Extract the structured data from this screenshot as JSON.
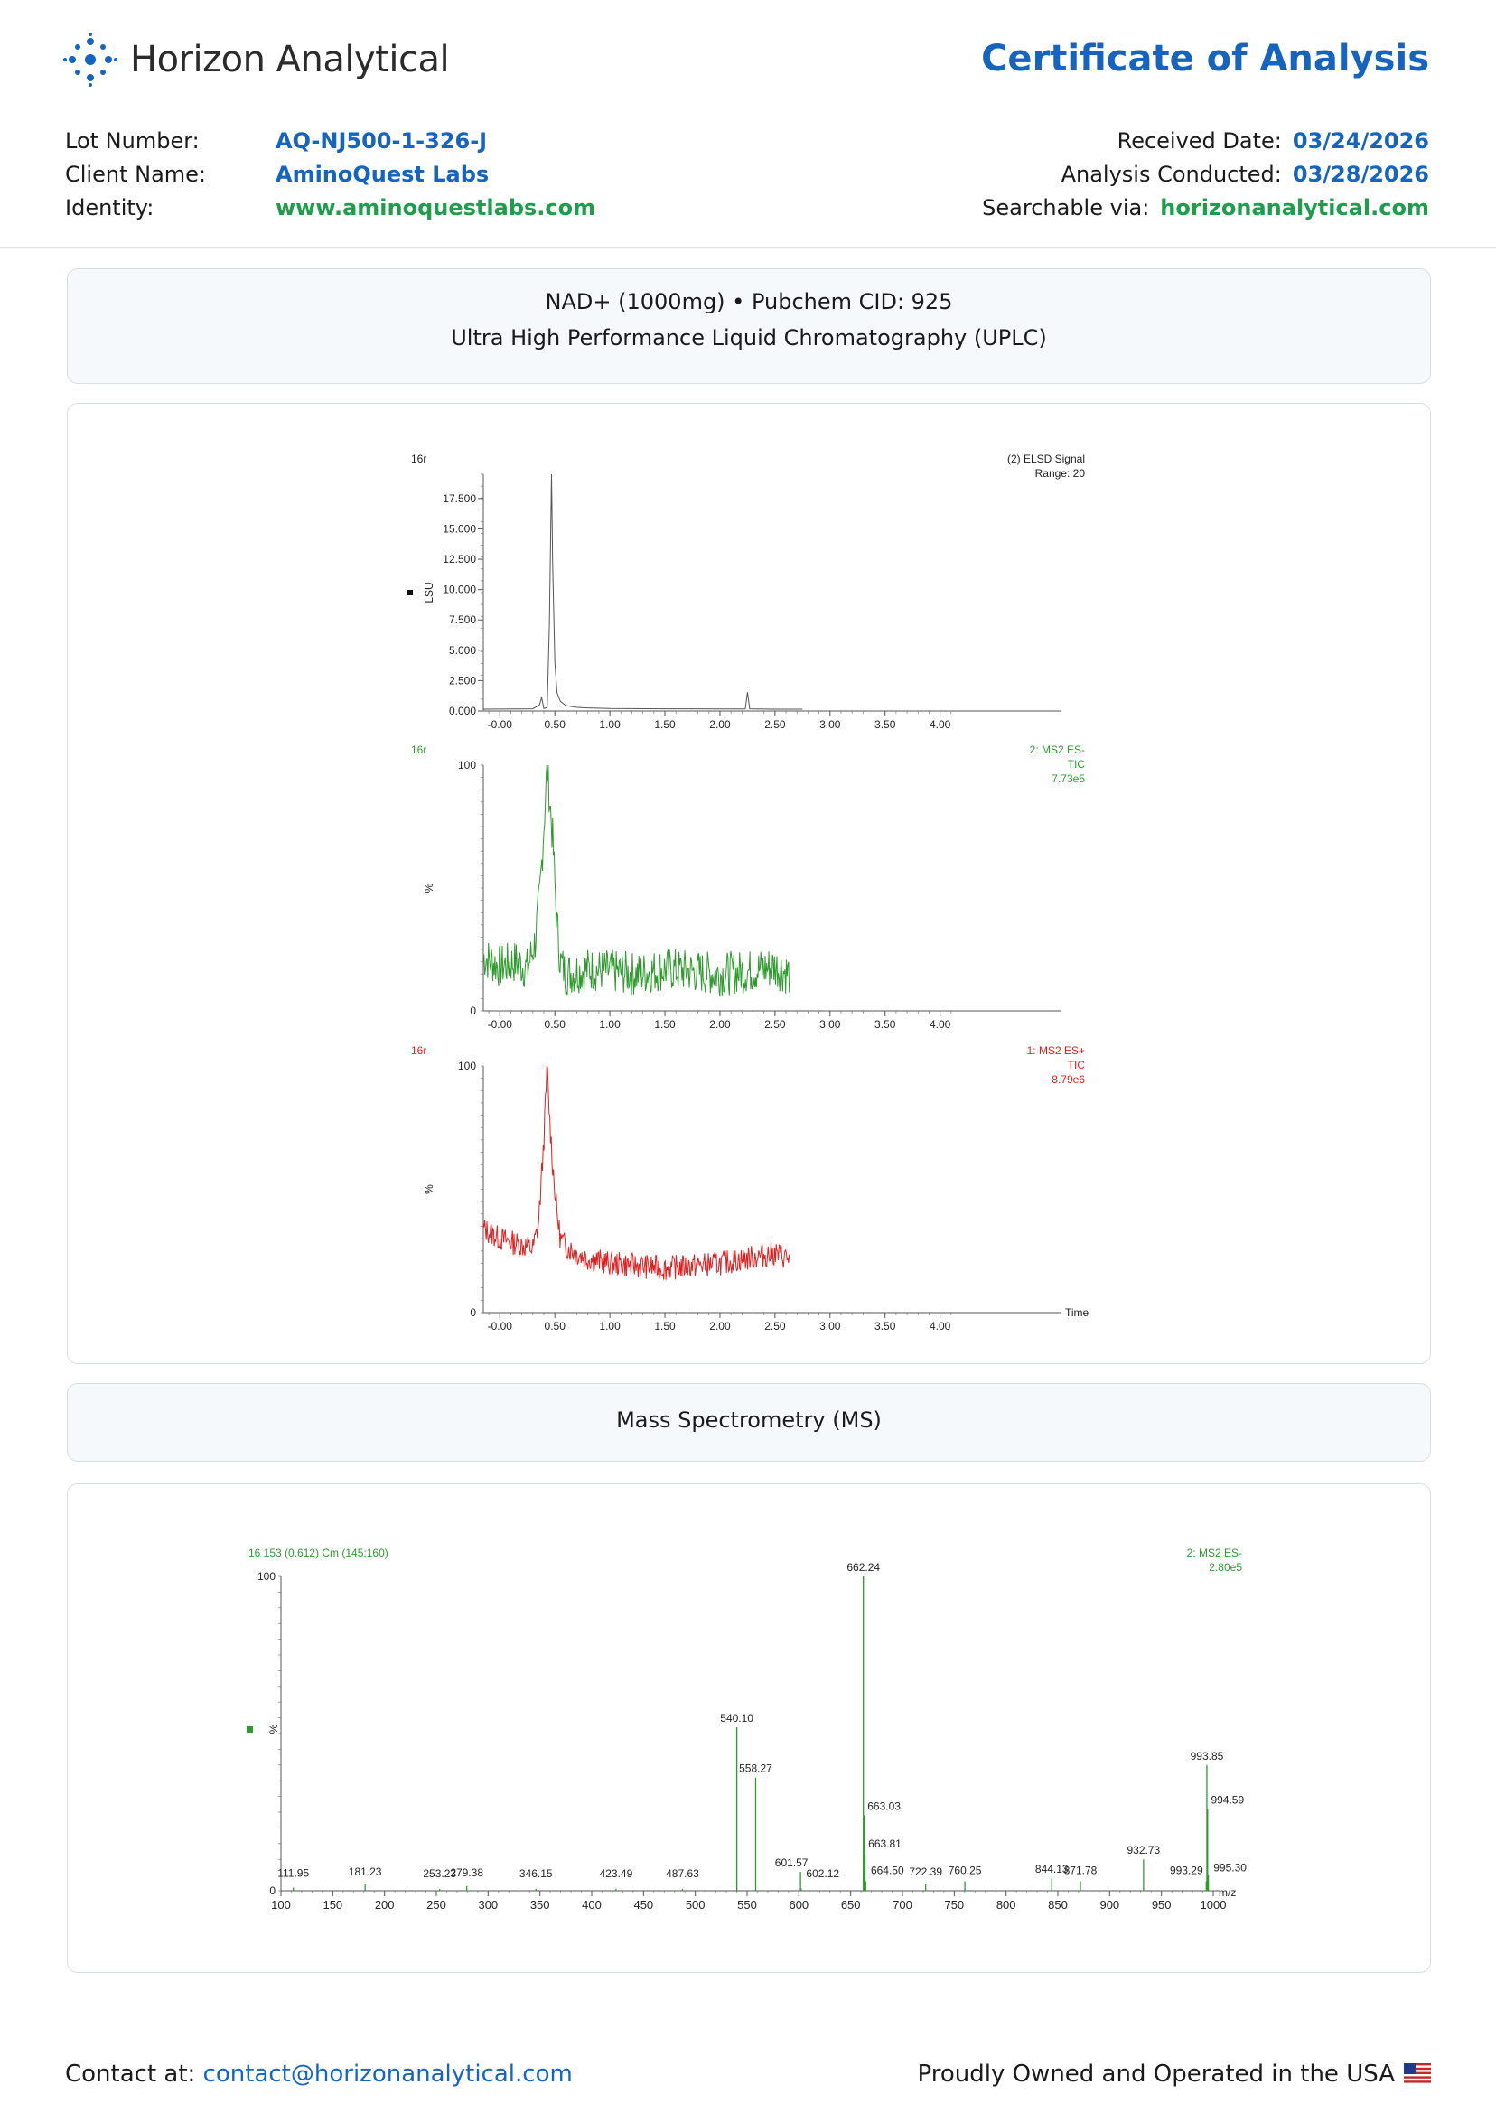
{
  "header": {
    "company": "Horizon Analytical",
    "doc_title": "Certificate of Analysis",
    "lot_label": "Lot Number:",
    "lot_value": "AQ-NJ500-1-326-J",
    "client_label": "Client Name:",
    "client_value": "AminoQuest Labs",
    "identity_label": "Identity:",
    "identity_value": "www.aminoquestlabs.com",
    "received_label": "Received Date:",
    "received_value": "03/24/2026",
    "analysis_label": "Analysis Conducted:",
    "analysis_value": "03/28/2026",
    "search_label": "Searchable via:",
    "search_value": "horizonanalytical.com"
  },
  "section1": {
    "line1": "NAD+ (1000mg) • Pubchem CID: 925",
    "line2": "Ultra High Performance Liquid Chromatography (UPLC)"
  },
  "section2": {
    "title": "Mass Spectrometry (MS)"
  },
  "footer": {
    "contact_label": "Contact at:",
    "contact_email": "contact@horizonanalytical.com",
    "usa_text": "Proudly Owned and Operated in the USA"
  },
  "colors": {
    "accent": "#1565c0",
    "green": "#1e9e4a",
    "elsd": "#555555",
    "ms_neg": "#2e9a2e",
    "ms_pos": "#e02020"
  },
  "chart_data": [
    {
      "type": "line",
      "id": "elsd",
      "corner_label": "16r",
      "trace_label_1": "(2) ELSD Signal",
      "trace_label_2": "Range: 20",
      "ylabel": "LSU",
      "ylim": [
        0,
        19500
      ],
      "yticks": [
        0,
        2500,
        5000,
        7500,
        10000,
        12500,
        15000,
        17500
      ],
      "ytick_labels": [
        "0.000",
        "2.500",
        "5.000",
        "7.500",
        "10.000",
        "12.500",
        "15.000",
        "17.500"
      ],
      "xlim": [
        -0.15,
        4.2
      ],
      "xticks": [
        0,
        0.5,
        1,
        1.5,
        2,
        2.5,
        3,
        3.5,
        4
      ],
      "xtick_labels": [
        "-0.00",
        "0.50",
        "1.00",
        "1.50",
        "2.00",
        "2.50",
        "3.00",
        "3.50",
        "4.00"
      ],
      "x": [
        -0.15,
        0.3,
        0.36,
        0.38,
        0.4,
        0.43,
        0.45,
        0.47,
        0.48,
        0.5,
        0.52,
        0.55,
        0.6,
        0.7,
        0.8,
        1.0,
        1.5,
        2.0,
        2.23,
        2.25,
        2.27,
        2.5,
        2.75
      ],
      "y": [
        150,
        180,
        500,
        1100,
        200,
        300,
        7000,
        19500,
        12000,
        4000,
        1500,
        800,
        450,
        300,
        250,
        200,
        180,
        170,
        170,
        1550,
        180,
        150,
        150
      ]
    },
    {
      "type": "line",
      "id": "ms_neg_tic",
      "corner_label": "16r",
      "trace_label_1": "2: MS2 ES-",
      "trace_label_2": "TIC",
      "trace_label_3": "7.73e5",
      "ylabel": "%",
      "ylim": [
        0,
        100
      ],
      "ytick_labels": [
        "0",
        "100"
      ],
      "xlim": [
        -0.15,
        4.2
      ],
      "xtick_labels": [
        "-0.00",
        "0.50",
        "1.00",
        "1.50",
        "2.00",
        "2.50",
        "3.00",
        "3.50",
        "4.00"
      ],
      "x": [
        -0.15,
        0.0,
        0.15,
        0.25,
        0.32,
        0.36,
        0.4,
        0.43,
        0.45,
        0.48,
        0.52,
        0.55,
        0.6,
        0.8,
        1.0,
        1.25,
        1.5,
        1.75,
        2.0,
        2.25,
        2.5,
        2.63
      ],
      "y": [
        22,
        18,
        20,
        17,
        28,
        45,
        75,
        100,
        88,
        70,
        35,
        20,
        15,
        17,
        16,
        15,
        17,
        16,
        15,
        16,
        18,
        15
      ]
    },
    {
      "type": "line",
      "id": "ms_pos_tic",
      "corner_label": "16r",
      "trace_label_1": "1: MS2 ES+",
      "trace_label_2": "TIC",
      "trace_label_3": "8.79e6",
      "ylabel": "%",
      "xlabel": "Time",
      "ylim": [
        0,
        100
      ],
      "ytick_labels": [
        "0",
        "100"
      ],
      "xlim": [
        -0.15,
        4.2
      ],
      "xtick_labels": [
        "-0.00",
        "0.50",
        "1.00",
        "1.50",
        "2.00",
        "2.50",
        "3.00",
        "3.50",
        "4.00"
      ],
      "x": [
        -0.15,
        0.0,
        0.15,
        0.3,
        0.35,
        0.4,
        0.43,
        0.45,
        0.48,
        0.52,
        0.55,
        0.6,
        0.7,
        0.8,
        1.0,
        1.25,
        1.5,
        1.75,
        2.0,
        2.25,
        2.5,
        2.63
      ],
      "y": [
        34,
        30,
        28,
        26,
        35,
        70,
        100,
        80,
        60,
        40,
        30,
        27,
        24,
        22,
        20,
        19,
        18,
        19,
        20,
        22,
        24,
        22
      ]
    },
    {
      "type": "bar",
      "id": "mass_spectrum",
      "scan_label": "16 153 (0.612) Cm (145:160)",
      "trace_label_1": "2: MS2 ES-",
      "trace_label_2": "2.80e5",
      "ylabel": "%",
      "xlabel": "m/z",
      "ylim": [
        0,
        100
      ],
      "ytick_labels": [
        "0",
        "100"
      ],
      "xlim": [
        100,
        1000
      ],
      "xticks": [
        100,
        150,
        200,
        250,
        300,
        350,
        400,
        450,
        500,
        550,
        600,
        650,
        700,
        750,
        800,
        850,
        900,
        950,
        1000
      ],
      "xtick_labels": [
        "100",
        "150",
        "200",
        "250",
        "300",
        "350",
        "400",
        "450",
        "500",
        "550",
        "600",
        "650",
        "700",
        "750",
        "800",
        "850",
        "900",
        "950",
        "1000"
      ],
      "peaks_mz": [
        111.95,
        181.23,
        253.23,
        279.38,
        346.15,
        423.49,
        487.63,
        540.1,
        558.27,
        601.57,
        602.12,
        662.24,
        663.03,
        663.81,
        664.5,
        722.39,
        760.25,
        844.13,
        871.78,
        932.73,
        993.29,
        993.85,
        994.59,
        995.3
      ],
      "peaks_intensity": [
        1,
        2,
        0.6,
        1.5,
        0.6,
        0.6,
        0.6,
        52,
        36,
        6,
        0.8,
        100,
        24,
        12,
        3,
        2,
        3,
        4,
        3,
        10,
        3,
        40,
        26,
        5
      ],
      "peak_labels": [
        "111.95",
        "181.23",
        "253.23",
        "279.38",
        "346.15",
        "423.49",
        "487.63",
        "540.10",
        "558.27",
        "601.57",
        "602.12",
        "662.24",
        "663.03",
        "663.81",
        "664.50",
        "722.39",
        "760.25",
        "844.13",
        "871.78",
        "932.73",
        "993.29",
        "993.85",
        "994.59",
        "995.30"
      ]
    }
  ]
}
